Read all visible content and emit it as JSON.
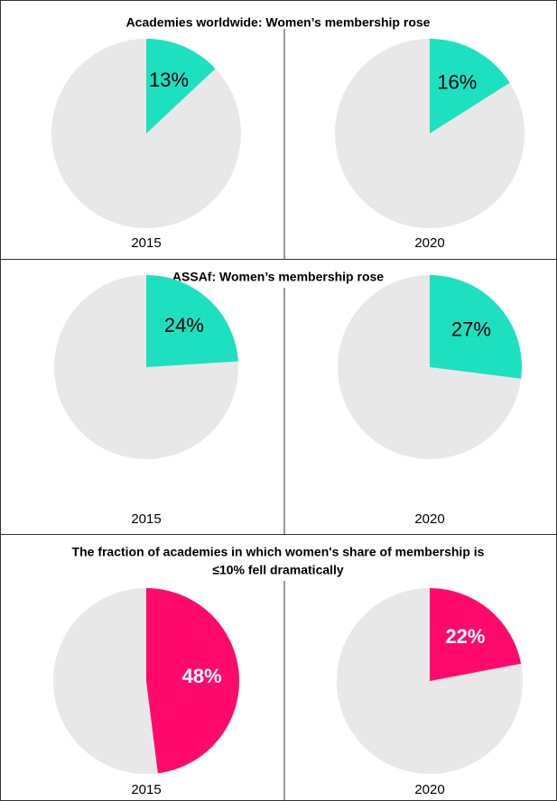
{
  "chart_data": [
    {
      "type": "pie",
      "title": [
        "Academies worldwide: Women’s membership rose"
      ],
      "categories": [
        "2015",
        "2020"
      ],
      "values": [
        13,
        16
      ],
      "value_labels": [
        "13%",
        "16%"
      ],
      "color": "#1de0c0",
      "rest_color": "#e8e8e8",
      "label_color": "#000000",
      "label_bold": false
    },
    {
      "type": "pie",
      "title": [
        "ASSAf: Women’s membership rose"
      ],
      "categories": [
        "2015",
        "2020"
      ],
      "values": [
        24,
        27
      ],
      "value_labels": [
        "24%",
        "27%"
      ],
      "color": "#1de0c0",
      "rest_color": "#e8e8e8",
      "label_color": "#000000",
      "label_bold": false
    },
    {
      "type": "pie",
      "title": [
        "The fraction of academies in which women's share of membership is",
        "≤10% fell dramatically"
      ],
      "categories": [
        "2015",
        "2020"
      ],
      "values": [
        48,
        22
      ],
      "value_labels": [
        "48%",
        "22%"
      ],
      "color": "#ff0a6c",
      "rest_color": "#e8e8e8",
      "label_color": "#ffffff",
      "label_bold": true
    }
  ]
}
